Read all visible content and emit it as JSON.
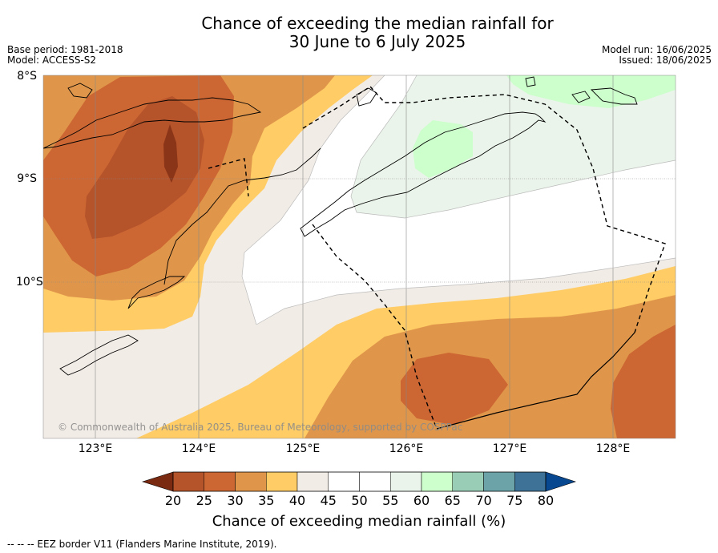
{
  "title_line1": "Chance of exceeding the median rainfall for",
  "title_line2": "30 June to 6 July 2025",
  "base_period": "Base period: 1981-2018",
  "model": "Model: ACCESS-S2",
  "model_run": "Model run: 16/06/2025",
  "issued": "Issued: 18/06/2025",
  "lat_labels": [
    "8°S",
    "9°S",
    "10°S"
  ],
  "lon_labels": [
    "123°E",
    "124°E",
    "125°E",
    "126°E",
    "127°E",
    "128°E"
  ],
  "copyright": "© Commonwealth of Australia 2025, Bureau of Meteorology, supported by COSPPac",
  "colorbar": {
    "ticks": [
      "20",
      "25",
      "30",
      "35",
      "40",
      "45",
      "50",
      "55",
      "60",
      "65",
      "70",
      "75",
      "80"
    ],
    "colors": [
      "#7a2a10",
      "#b5532a",
      "#cc6633",
      "#e0964a",
      "#ffcc66",
      "#f2ece6",
      "#ffffff",
      "#ffffff",
      "#eaf4ea",
      "#ccffcc",
      "#99cdb5",
      "#6ba3a8",
      "#3e7296",
      "#084891"
    ],
    "title": "Chance of exceeding median rainfall (%)"
  },
  "footnote": "--  --  -- EEZ border V11 (Flanders Marine Institute, 2019)."
}
